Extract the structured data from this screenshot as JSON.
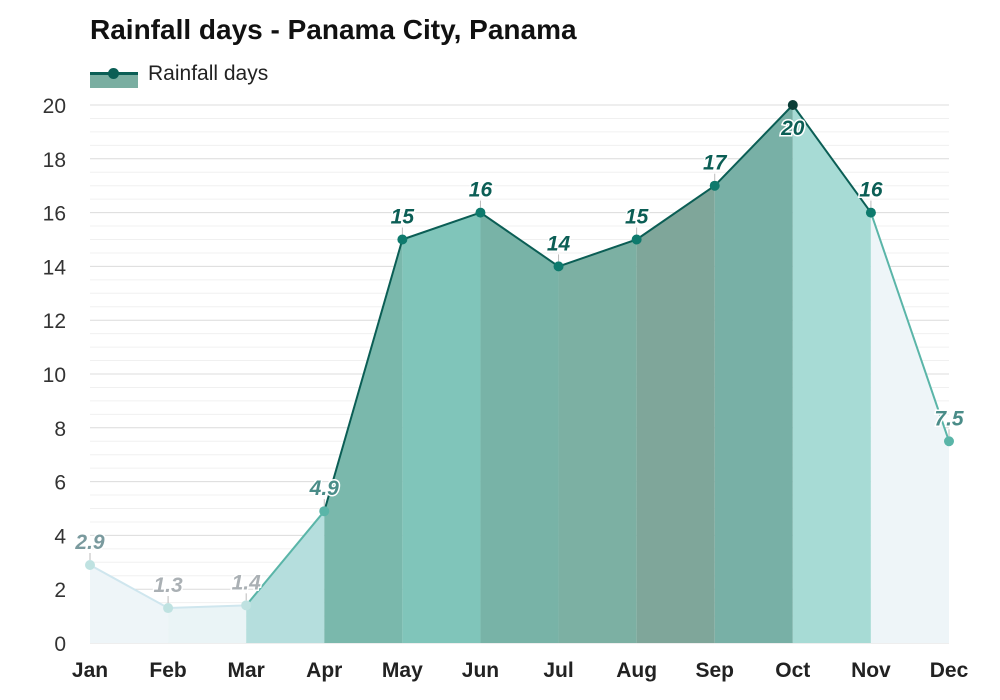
{
  "chart_data": {
    "type": "area",
    "title": "Rainfall days - Panama City, Panama",
    "categories": [
      "Jan",
      "Feb",
      "Mar",
      "Apr",
      "May",
      "Jun",
      "Jul",
      "Aug",
      "Sep",
      "Oct",
      "Nov",
      "Dec"
    ],
    "series": [
      {
        "name": "Rainfall days",
        "values": [
          2.9,
          1.3,
          1.4,
          4.9,
          15,
          16,
          14,
          15,
          17,
          20,
          16,
          7.5
        ],
        "labels": [
          "2.9",
          "1.3",
          "1.4",
          "4.9",
          "15",
          "16",
          "14",
          "15",
          "17",
          "20",
          "16",
          "7.5"
        ]
      }
    ],
    "yticks": [
      "0",
      "2",
      "4",
      "6",
      "8",
      "10",
      "12",
      "14",
      "16",
      "18",
      "20"
    ],
    "ylim": [
      0,
      20
    ],
    "grid": true,
    "legend_position": "top-left",
    "colors": {
      "line_high": "#0b5e55",
      "line_low": "#5ab5a8",
      "band_palette": [
        "#eef5f8",
        "#eaf4f6",
        "#b5dedd",
        "#7ab8ac",
        "#80c5ba",
        "#78b3a7",
        "#7cb0a3",
        "#7fa69a",
        "#78b0a6",
        "#a7dbd5"
      ]
    }
  }
}
